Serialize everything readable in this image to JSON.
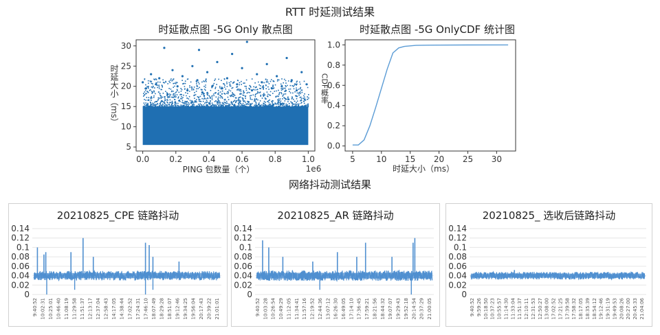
{
  "page": {
    "title": "RTT 时延测试结果",
    "section2_title": "网络抖动测试结果"
  },
  "colors": {
    "scatter": "#1f6fb2",
    "cdf_line": "#5a9bd5",
    "jitter": "#4f8fd0",
    "axis": "#333333",
    "grid": "#e6e6e6"
  },
  "chart_data": [
    {
      "id": "scatter",
      "type": "scatter",
      "title": "时延散点图 -5G Only 散点图",
      "xlabel": "PING 包数量（个）",
      "ylabel": "时延大小（ms）",
      "x_offset_label": "1e6",
      "xlim": [
        -0.04,
        1.04
      ],
      "ylim": [
        4,
        31.5
      ],
      "x_ticks": [
        0.0,
        0.2,
        0.4,
        0.6,
        0.8,
        1.0
      ],
      "x_tick_labels": [
        "0.0",
        "0.2",
        "0.4",
        "0.6",
        "0.8",
        "1.0"
      ],
      "y_ticks": [
        5,
        10,
        15,
        20,
        25,
        30
      ],
      "y_tick_labels": [
        "5",
        "10",
        "15",
        "20",
        "25",
        "30"
      ],
      "dense_band": {
        "x": [
          0.0,
          1.0
        ],
        "y": [
          5.5,
          15
        ]
      },
      "points": [
        {
          "x": 0.0,
          "y": 21.0
        },
        {
          "x": 0.02,
          "y": 19.5
        },
        {
          "x": 0.05,
          "y": 23.0
        },
        {
          "x": 0.08,
          "y": 20.5
        },
        {
          "x": 0.1,
          "y": 22.0
        },
        {
          "x": 0.13,
          "y": 29.5
        },
        {
          "x": 0.15,
          "y": 18.0
        },
        {
          "x": 0.18,
          "y": 24.0
        },
        {
          "x": 0.21,
          "y": 20.0
        },
        {
          "x": 0.24,
          "y": 22.5
        },
        {
          "x": 0.27,
          "y": 19.0
        },
        {
          "x": 0.3,
          "y": 25.0
        },
        {
          "x": 0.33,
          "y": 21.5
        },
        {
          "x": 0.36,
          "y": 18.5
        },
        {
          "x": 0.39,
          "y": 23.5
        },
        {
          "x": 0.42,
          "y": 20.0
        },
        {
          "x": 0.45,
          "y": 26.0
        },
        {
          "x": 0.48,
          "y": 19.5
        },
        {
          "x": 0.51,
          "y": 22.0
        },
        {
          "x": 0.54,
          "y": 28.0
        },
        {
          "x": 0.57,
          "y": 20.5
        },
        {
          "x": 0.6,
          "y": 24.5
        },
        {
          "x": 0.63,
          "y": 31.0
        },
        {
          "x": 0.66,
          "y": 19.0
        },
        {
          "x": 0.69,
          "y": 23.0
        },
        {
          "x": 0.72,
          "y": 21.0
        },
        {
          "x": 0.75,
          "y": 25.5
        },
        {
          "x": 0.78,
          "y": 19.5
        },
        {
          "x": 0.81,
          "y": 22.5
        },
        {
          "x": 0.84,
          "y": 20.0
        },
        {
          "x": 0.87,
          "y": 27.0
        },
        {
          "x": 0.9,
          "y": 21.5
        },
        {
          "x": 0.93,
          "y": 19.0
        },
        {
          "x": 0.96,
          "y": 23.5
        },
        {
          "x": 0.99,
          "y": 20.5
        },
        {
          "x": 0.34,
          "y": 29.0
        }
      ]
    },
    {
      "id": "cdf",
      "type": "line",
      "title": "时延散点图 -5G OnlyCDF 统计图",
      "xlabel": "时延大小（ms）",
      "ylabel": "CDF概率",
      "xlim": [
        3.7,
        33.3
      ],
      "ylim": [
        -0.05,
        1.05
      ],
      "x_ticks": [
        5,
        10,
        15,
        20,
        25,
        30
      ],
      "x_tick_labels": [
        "5",
        "10",
        "15",
        "20",
        "25",
        "30"
      ],
      "y_ticks": [
        0.0,
        0.2,
        0.4,
        0.6,
        0.8,
        1.0
      ],
      "y_tick_labels": [
        "0.0",
        "0.2",
        "0.4",
        "0.6",
        "0.8",
        "1.0"
      ],
      "x": [
        5,
        6,
        7,
        8,
        9,
        10,
        11,
        12,
        13,
        14,
        15,
        16,
        18,
        20,
        25,
        32
      ],
      "y": [
        0.01,
        0.01,
        0.06,
        0.2,
        0.38,
        0.57,
        0.76,
        0.92,
        0.97,
        0.985,
        0.99,
        0.995,
        0.997,
        0.998,
        0.999,
        1.0
      ]
    },
    {
      "id": "cpe",
      "type": "line",
      "title": "20210825_CPE 链路抖动",
      "ylim": [
        0,
        0.14
      ],
      "y_ticks": [
        0,
        0.02,
        0.04,
        0.06,
        0.08,
        0.1,
        0.12,
        0.14
      ],
      "y_tick_labels": [
        "0",
        "0.02",
        "0.04",
        "0.06",
        "0.08",
        "0.1",
        "0.12",
        "0.14"
      ],
      "baseline": 0.04,
      "noise": 0.01,
      "spikes": [
        {
          "pos": 0.02,
          "v": 0.1
        },
        {
          "pos": 0.055,
          "v": 0.085
        },
        {
          "pos": 0.065,
          "v": 0.09
        },
        {
          "pos": 0.2,
          "v": 0.09
        },
        {
          "pos": 0.265,
          "v": 0.12
        },
        {
          "pos": 0.32,
          "v": 0.08
        },
        {
          "pos": 0.6,
          "v": 0.11
        },
        {
          "pos": 0.62,
          "v": 0.105
        },
        {
          "pos": 0.64,
          "v": 0.08
        },
        {
          "pos": 0.78,
          "v": 0.07
        }
      ],
      "dips": [
        {
          "pos": 0.07,
          "v": 0.0
        },
        {
          "pos": 0.22,
          "v": 0.01
        },
        {
          "pos": 0.6,
          "v": 0.0
        },
        {
          "pos": 0.64,
          "v": 0.01
        }
      ],
      "x_labels": [
        "9:40:52",
        "10:02:31",
        "10:25:01",
        "10:46:40",
        "11:08:19",
        "11:29:58",
        "11:51:37",
        "12:13:17",
        "12:37:04",
        "12:58:43",
        "14:17:05",
        "14:38:44",
        "17:02:52",
        "17:24:31",
        "17:46:10",
        "18:07:49",
        "18:29:28",
        "18:51:07",
        "19:12:46",
        "19:34:25",
        "19:56:04",
        "20:17:43",
        "20:39:22",
        "21:01:01"
      ]
    },
    {
      "id": "ar",
      "type": "line",
      "title": "20210825_AR 链路抖动",
      "ylim": [
        0,
        0.14
      ],
      "y_ticks": [
        0,
        0.02,
        0.04,
        0.06,
        0.08,
        0.1,
        0.12,
        0.14
      ],
      "y_tick_labels": [
        "0",
        "0.02",
        "0.04",
        "0.06",
        "0.08",
        "0.1",
        "0.12",
        "0.14"
      ],
      "baseline": 0.04,
      "noise": 0.011,
      "spikes": [
        {
          "pos": 0.035,
          "v": 0.115
        },
        {
          "pos": 0.07,
          "v": 0.1
        },
        {
          "pos": 0.15,
          "v": 0.08
        },
        {
          "pos": 0.32,
          "v": 0.07
        },
        {
          "pos": 0.46,
          "v": 0.09
        },
        {
          "pos": 0.57,
          "v": 0.08
        },
        {
          "pos": 0.62,
          "v": 0.11
        },
        {
          "pos": 0.77,
          "v": 0.08
        },
        {
          "pos": 0.89,
          "v": 0.11
        },
        {
          "pos": 0.9,
          "v": 0.12
        }
      ],
      "dips": [
        {
          "pos": 0.36,
          "v": 0.01
        },
        {
          "pos": 0.88,
          "v": 0.0
        }
      ],
      "x_labels": [
        "9:40:52",
        "10:03:28",
        "10:26:54",
        "10:49:29",
        "11:12:05",
        "11:34:41",
        "11:57:16",
        "12:19:52",
        "12:44:36",
        "13:07:12",
        "16:26:30",
        "16:49:05",
        "17:14:10",
        "17:36:45",
        "17:59:21",
        "18:21:56",
        "18:44:32",
        "19:07:07",
        "19:29:43",
        "19:52:18",
        "20:14:54",
        "20:37:29",
        "21:00:05"
      ]
    },
    {
      "id": "filtered",
      "type": "line",
      "title": "20210825_ 选收后链路抖动",
      "ylim": [
        0,
        0.14
      ],
      "y_ticks": [
        0,
        0.02,
        0.04,
        0.06,
        0.08,
        0.1,
        0.12,
        0.14
      ],
      "y_tick_labels": [
        "0",
        "0.02",
        "0.04",
        "0.06",
        "0.08",
        "0.1",
        "0.12",
        "0.14"
      ],
      "baseline": 0.04,
      "noise": 0.008,
      "spikes": [
        {
          "pos": 0.25,
          "v": 0.052
        }
      ],
      "dips": [],
      "x_labels": [
        "9:40:52",
        "9:59:26",
        "10:18:50",
        "10:37:23",
        "10:55:57",
        "11:14:30",
        "11:33:04",
        "11:51:37",
        "12:10:11",
        "12:31:53",
        "12:50:27",
        "13:08:00",
        "17:02:52",
        "17:21:25",
        "17:39:58",
        "17:58:32",
        "18:17:05",
        "18:35:39",
        "18:54:12",
        "19:12:46",
        "19:31:19",
        "19:49:53",
        "20:08:26",
        "20:27:00",
        "20:45:33",
        "21:04:06"
      ]
    }
  ]
}
